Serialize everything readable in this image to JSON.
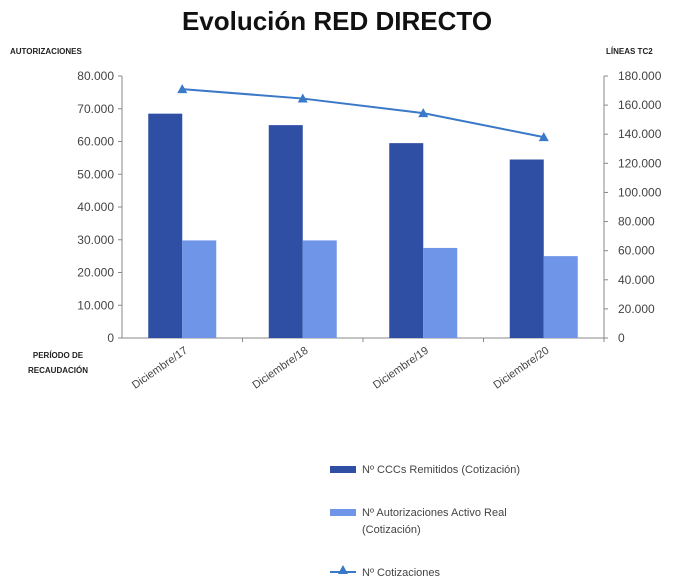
{
  "chart_data": {
    "type": "bar",
    "title": "Evolución RED DIRECTO",
    "y_left_label": "AUTORIZACIONES",
    "y_right_label": "LÍNEAS TC2",
    "x_label": "PERÍODO DE RECAUDACIÓN",
    "x_label_lines": [
      "PERÍODO DE",
      "RECAUDACIÓN"
    ],
    "categories": [
      "Diciembre/17",
      "Diciembre/18",
      "Diciembre/19",
      "Diciembre/20"
    ],
    "ylim_left": [
      0,
      80000
    ],
    "ylim_right": [
      0,
      180000
    ],
    "y_left_ticks": [
      "0",
      "10.000",
      "20.000",
      "30.000",
      "40.000",
      "50.000",
      "60.000",
      "70.000",
      "80.000"
    ],
    "y_right_ticks": [
      "0",
      "20.000",
      "40.000",
      "60.000",
      "80.000",
      "100.000",
      "120.000",
      "140.000",
      "160.000",
      "180.000"
    ],
    "series": [
      {
        "name": "Nº CCCs Remitidos (Cotización)",
        "type": "bar",
        "axis": "left",
        "color": "#2e4fa3",
        "values": [
          68500,
          65000,
          59500,
          54500
        ]
      },
      {
        "name": "Nº Autorizaciones Activo Real (Cotización)",
        "type": "bar",
        "axis": "left",
        "color": "#6e95e8",
        "values": [
          29800,
          29800,
          27500,
          25000
        ]
      },
      {
        "name": "Nº Cotizaciones",
        "type": "line",
        "axis": "right",
        "color": "#3a78c8",
        "marker": "triangle",
        "values": [
          171000,
          164500,
          154500,
          138000
        ]
      }
    ],
    "grid": false,
    "legend_position": "bottom-right"
  },
  "legend": {
    "items": [
      {
        "label": "Nº CCCs Remitidos (Cotización)",
        "color": "#2e4fa3",
        "kind": "bar"
      },
      {
        "label": "Nº Autorizaciones Activo Real (Cotización)",
        "color": "#6e95e8",
        "kind": "bar"
      },
      {
        "label": "Nº Cotizaciones",
        "color": "#3a78c8",
        "kind": "line"
      }
    ]
  }
}
